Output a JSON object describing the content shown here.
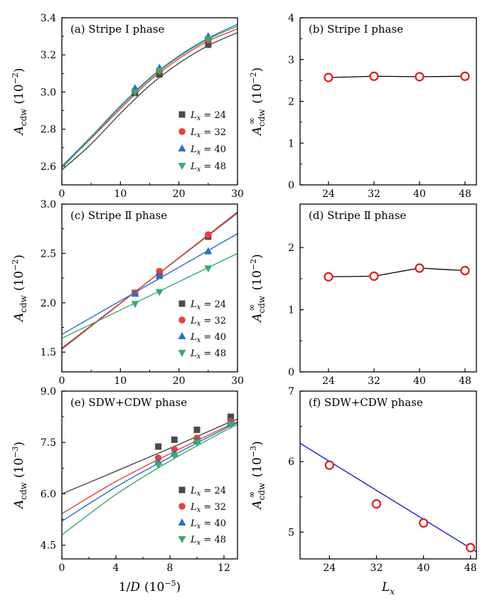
{
  "chart_data": [
    {
      "id": "a",
      "type": "scatter",
      "title": "(a) Stripe I phase",
      "xlabel": "",
      "ylabel_main": "A",
      "ylabel_sub": "cdw",
      "ylabel_unit": "(10",
      "ylabel_exp": "−2",
      "ylabel_close": ")",
      "xlim": [
        0,
        30
      ],
      "ylim": [
        2.5,
        3.4
      ],
      "xticks": [
        "0",
        "10",
        "20",
        "30"
      ],
      "yticks": [
        "2.6",
        "2.8",
        "3.0",
        "3.2",
        "3.4"
      ],
      "legend_position": "right",
      "series": [
        {
          "name": "Lx = 24",
          "legend": "L_x = 24",
          "color": "#4a4a4a",
          "marker": "square",
          "x": [
            12.5,
            16.67,
            25
          ],
          "y": [
            2.995,
            3.095,
            3.255
          ],
          "fit_x": [
            0,
            5,
            10,
            15,
            20,
            25,
            30
          ],
          "fit_y": [
            2.58,
            2.72,
            2.885,
            3.035,
            3.155,
            3.25,
            3.32
          ]
        },
        {
          "name": "Lx = 32",
          "legend": "L_x = 32",
          "color": "#e8403a",
          "marker": "circle",
          "x": [
            12.5,
            16.67,
            25
          ],
          "y": [
            3.01,
            3.115,
            3.28
          ],
          "fit_x": [
            0,
            5,
            10,
            15,
            20,
            25,
            30
          ],
          "fit_y": [
            2.595,
            2.75,
            2.91,
            3.06,
            3.18,
            3.275,
            3.34
          ]
        },
        {
          "name": "Lx = 40",
          "legend": "L_x = 40",
          "color": "#2a6fcc",
          "marker": "triangle-up",
          "x": [
            12.5,
            16.67,
            25
          ],
          "y": [
            3.02,
            3.13,
            3.3
          ],
          "fit_x": [
            0,
            5,
            10,
            15,
            20,
            25,
            30
          ],
          "fit_y": [
            2.6,
            2.76,
            2.925,
            3.075,
            3.195,
            3.29,
            3.365
          ]
        },
        {
          "name": "Lx = 48",
          "legend": "L_x = 48",
          "color": "#3aaa6a",
          "marker": "triangle-down",
          "x": [
            12.5,
            16.67,
            25
          ],
          "y": [
            3.0,
            3.115,
            3.285
          ],
          "fit_x": [
            0,
            5,
            10,
            15,
            20,
            25,
            30
          ],
          "fit_y": [
            2.59,
            2.755,
            2.92,
            3.07,
            3.19,
            3.285,
            3.355
          ]
        }
      ]
    },
    {
      "id": "b",
      "type": "line",
      "title": "(b) Stripe I phase",
      "xlabel": "",
      "ylabel_main": "A",
      "ylabel_sub": "cdw",
      "ylabel_sup": "∞",
      "ylabel_unit": "(10",
      "ylabel_exp": "−2",
      "ylabel_close": ")",
      "xlim": [
        19,
        50
      ],
      "ylim": [
        0,
        4
      ],
      "xticks": [
        "24",
        "32",
        "40",
        "48"
      ],
      "xtick_values": [
        24,
        32,
        40,
        48
      ],
      "yticks": [
        "0",
        "1",
        "2",
        "3",
        "4"
      ],
      "series": [
        {
          "name": "",
          "color": "#e31a1c",
          "x": [
            24,
            32,
            40,
            48
          ],
          "y": [
            2.57,
            2.6,
            2.59,
            2.6
          ]
        }
      ]
    },
    {
      "id": "c",
      "type": "scatter",
      "title": "(c) Stripe Ⅱ phase",
      "xlabel": "",
      "ylabel_main": "A",
      "ylabel_sub": "cdw",
      "ylabel_unit": "(10",
      "ylabel_exp": "−2",
      "ylabel_close": ")",
      "xlim": [
        0,
        30
      ],
      "ylim": [
        1.3,
        3.0
      ],
      "xticks": [
        "0",
        "10",
        "20",
        "30"
      ],
      "yticks": [
        "1.5",
        "2.0",
        "2.5",
        "3.0"
      ],
      "legend_position": "right",
      "series": [
        {
          "name": "Lx = 24",
          "legend": "L_x = 24",
          "color": "#4a4a4a",
          "marker": "square",
          "x": [
            12.5,
            16.67,
            25
          ],
          "y": [
            2.1,
            2.3,
            2.67
          ],
          "fit_x": [
            0,
            30
          ],
          "fit_y": [
            1.54,
            2.91
          ]
        },
        {
          "name": "Lx = 32",
          "legend": "L_x = 32",
          "color": "#e8403a",
          "marker": "circle",
          "x": [
            12.5,
            16.67,
            25
          ],
          "y": [
            2.1,
            2.32,
            2.69
          ],
          "fit_x": [
            0,
            30
          ],
          "fit_y": [
            1.53,
            2.92
          ]
        },
        {
          "name": "Lx = 40",
          "legend": "L_x = 40",
          "color": "#2a6fcc",
          "marker": "triangle-up",
          "x": [
            12.5,
            16.67,
            25
          ],
          "y": [
            2.09,
            2.27,
            2.52
          ],
          "fit_x": [
            0,
            30
          ],
          "fit_y": [
            1.68,
            2.7
          ]
        },
        {
          "name": "Lx = 48",
          "legend": "L_x = 48",
          "color": "#3aaa6a",
          "marker": "triangle-down",
          "x": [
            12.5,
            16.67,
            25
          ],
          "y": [
            1.99,
            2.11,
            2.35
          ],
          "fit_x": [
            0,
            30
          ],
          "fit_y": [
            1.64,
            2.5
          ]
        }
      ]
    },
    {
      "id": "d",
      "type": "line",
      "title": "(d) Stripe Ⅱ phase",
      "xlabel": "",
      "ylabel_main": "A",
      "ylabel_sub": "cdw",
      "ylabel_sup": "∞",
      "ylabel_unit": "(10",
      "ylabel_exp": "−2",
      "ylabel_close": ")",
      "xlim": [
        19,
        50
      ],
      "ylim": [
        0,
        2.7
      ],
      "xticks": [
        "24",
        "32",
        "40",
        "48"
      ],
      "xtick_values": [
        24,
        32,
        40,
        48
      ],
      "yticks": [
        "0",
        "1",
        "2"
      ],
      "series": [
        {
          "name": "",
          "color": "#e31a1c",
          "x": [
            24,
            32,
            40,
            48
          ],
          "y": [
            1.53,
            1.54,
            1.67,
            1.63
          ]
        }
      ]
    },
    {
      "id": "e",
      "type": "scatter",
      "title": "(e) SDW+CDW phase",
      "xlabel_main": "1/",
      "xlabel_var": "D",
      "xlabel_unit": "(10",
      "xlabel_exp": "−5",
      "xlabel_close": ")",
      "ylabel_main": "A",
      "ylabel_sub": "cdw",
      "ylabel_unit": "(10",
      "ylabel_exp": "−3",
      "ylabel_close": ")",
      "xlim": [
        0,
        13
      ],
      "ylim": [
        4.1,
        9.0
      ],
      "xticks": [
        "0",
        "4",
        "8",
        "12"
      ],
      "yticks": [
        "4.5",
        "6.0",
        "7.5",
        "9.0"
      ],
      "legend_position": "right",
      "series": [
        {
          "name": "Lx = 24",
          "legend": "L_x = 24",
          "color": "#4a4a4a",
          "marker": "square",
          "x": [
            7.14,
            8.33,
            10,
            12.5
          ],
          "y": [
            7.38,
            7.58,
            7.87,
            8.25
          ],
          "fit_x": [
            0,
            4,
            8,
            12,
            13
          ],
          "fit_y": [
            6.0,
            6.66,
            7.33,
            8.02,
            8.18
          ]
        },
        {
          "name": "Lx = 32",
          "legend": "L_x = 32",
          "color": "#e8403a",
          "marker": "circle",
          "x": [
            7.14,
            8.33,
            10,
            12.5
          ],
          "y": [
            7.05,
            7.3,
            7.63,
            8.12
          ],
          "fit_x": [
            0,
            4,
            8,
            12,
            13
          ],
          "fit_y": [
            5.42,
            6.36,
            7.17,
            7.93,
            8.1
          ]
        },
        {
          "name": "Lx = 40",
          "legend": "L_x = 40",
          "color": "#2a6fcc",
          "marker": "triangle-up",
          "x": [
            7.14,
            8.33,
            10,
            12.5
          ],
          "y": [
            6.93,
            7.18,
            7.55,
            8.07
          ],
          "fit_x": [
            0,
            4,
            8,
            12,
            13
          ],
          "fit_y": [
            5.2,
            6.2,
            7.07,
            7.89,
            8.07
          ]
        },
        {
          "name": "Lx = 48",
          "legend": "L_x = 48",
          "color": "#3aaa6a",
          "marker": "triangle-down",
          "x": [
            7.14,
            8.33,
            10,
            12.5
          ],
          "y": [
            6.85,
            7.12,
            7.5,
            8.02
          ],
          "fit_x": [
            0,
            4,
            8,
            12,
            13
          ],
          "fit_y": [
            4.8,
            5.98,
            6.96,
            7.83,
            8.02
          ]
        }
      ]
    },
    {
      "id": "f",
      "type": "scatter",
      "title": "(f) SDW+CDW phase",
      "xlabel_main": "L",
      "xlabel_sub": "x",
      "ylabel_main": "A",
      "ylabel_sub": "cdw",
      "ylabel_sup": "∞",
      "ylabel_unit": "(10",
      "ylabel_exp": "−3",
      "ylabel_close": ")",
      "xlim": [
        19,
        49
      ],
      "ylim": [
        4.62,
        7.0
      ],
      "xticks": [
        "24",
        "32",
        "40",
        "48"
      ],
      "xtick_values": [
        24,
        32,
        40,
        48
      ],
      "yticks": [
        "5",
        "6",
        "7"
      ],
      "ytick_values": [
        5,
        6,
        7
      ],
      "series": [
        {
          "name": "",
          "color": "#e31a1c",
          "x": [
            24,
            32,
            40,
            48
          ],
          "y": [
            5.95,
            5.4,
            5.13,
            4.78
          ]
        }
      ],
      "fit": {
        "color": "#1f2ad6",
        "x": [
          19,
          49
        ],
        "y": [
          6.26,
          4.72
        ]
      }
    }
  ]
}
